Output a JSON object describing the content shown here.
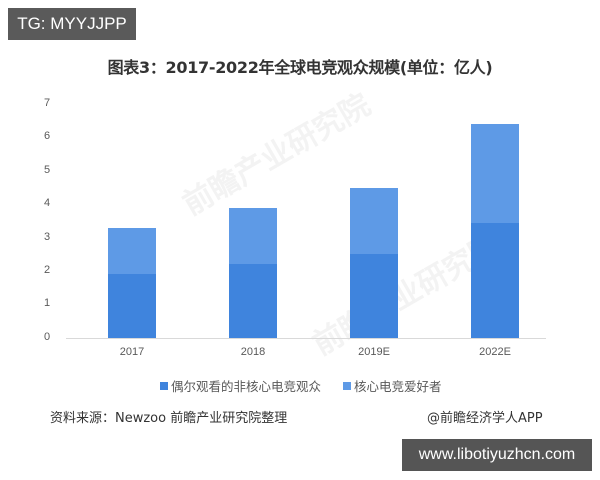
{
  "overlay": {
    "tag_label": "TG: MYYJJPP",
    "url_label": "www.libotiyuzhcn.com"
  },
  "chart_data": {
    "type": "bar",
    "stacked": true,
    "title": "图表3：2017-2022年全球电竞观众规模(单位：亿人)",
    "xlabel": "",
    "ylabel": "",
    "ylim": [
      0,
      7
    ],
    "yticks": [
      0,
      1,
      2,
      3,
      4,
      5,
      6,
      7
    ],
    "grid": false,
    "legend_position": "bottom",
    "categories": [
      "2017",
      "2018",
      "2019E",
      "2022E"
    ],
    "series": [
      {
        "name": "偶尔观看的非核心电竞观众",
        "color": "#3f84dd",
        "values": [
          1.9,
          2.2,
          2.5,
          3.45
        ]
      },
      {
        "name": "核心电竞爱好者",
        "color": "#5e9ae6",
        "values": [
          1.4,
          1.7,
          2.0,
          2.95
        ]
      }
    ],
    "totals": [
      3.3,
      3.9,
      4.5,
      6.4
    ]
  },
  "ytick_labels": [
    "7",
    "6",
    "5",
    "4",
    "3",
    "2",
    "1",
    "0"
  ],
  "legend": {
    "items": [
      {
        "label": "偶尔观看的非核心电竞观众",
        "color": "#3f84dd"
      },
      {
        "label": "核心电竞爱好者",
        "color": "#5e9ae6"
      }
    ]
  },
  "footer": {
    "source": "资料来源：Newzoo 前瞻产业研究院整理",
    "credit": "@前瞻经济学人APP"
  },
  "watermark": {
    "text": "前瞻产业研究院"
  }
}
